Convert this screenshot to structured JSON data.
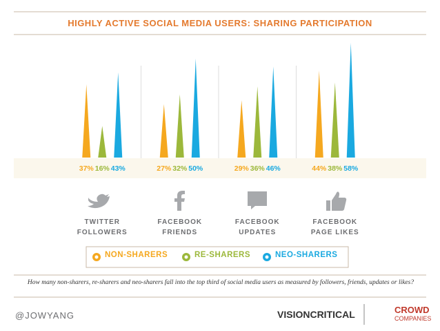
{
  "chart_data": {
    "type": "bar",
    "title": "HIGHLY ACTIVE SOCIAL MEDIA USERS: SHARING PARTICIPATION",
    "categories": [
      "TWITTER FOLLOWERS",
      "FACEBOOK FRIENDS",
      "FACEBOOK UPDATES",
      "FACEBOOK PAGE LIKES"
    ],
    "series": [
      {
        "name": "NON-SHARERS",
        "color": "#f5a81f",
        "values": [
          37,
          27,
          29,
          44
        ],
        "value_labels": [
          "37%",
          "27%",
          "29%",
          "44%"
        ]
      },
      {
        "name": "RE-SHARERS",
        "color": "#9cb83b",
        "values": [
          16,
          32,
          36,
          38
        ],
        "value_labels": [
          "16%",
          "32%",
          "36%",
          "38%"
        ]
      },
      {
        "name": "NEO-SHARERS",
        "color": "#1aa9e0",
        "values": [
          43,
          50,
          46,
          58
        ],
        "value_labels": [
          "43%",
          "50%",
          "46%",
          "58%"
        ]
      }
    ],
    "caption": "How many non-sharers, re-sharers and neo-sharers fall into the top third of social media users as measured by followers, friends, updates or likes?"
  },
  "footer": {
    "handle": "@JOWYANG",
    "brand": "VISIONCRITICAL",
    "partner_top": "CROWD",
    "partner_bottom": "COMPANIES"
  }
}
